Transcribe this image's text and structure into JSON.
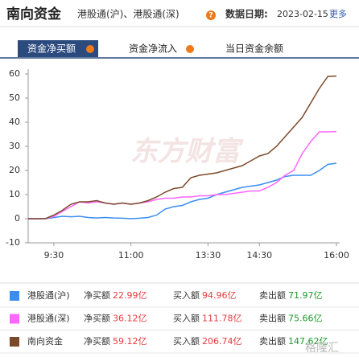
{
  "header": {
    "title": "南向资金",
    "subtitle": "港股通(沪)、港股通(深)",
    "help": "?",
    "date_label": "数据日期:",
    "date": "2023-02-15",
    "more": "更多"
  },
  "tabs": [
    "资金净买额",
    "资金净流入",
    "当日资金余额"
  ],
  "chart_data": {
    "type": "line",
    "watermark": "东方财富",
    "categories": [
      null,
      null,
      null,
      "9:30",
      null,
      null,
      null,
      null,
      null,
      null,
      null,
      null,
      "11:00",
      null,
      null,
      null,
      null,
      null,
      null,
      null,
      null,
      "13:30",
      null,
      null,
      null,
      null,
      null,
      "14:30",
      null,
      null,
      null,
      null,
      null,
      null,
      null,
      null,
      "16:00"
    ],
    "series": [
      {
        "name": "港股通(沪)",
        "color": "#3a8ef2",
        "values": [
          0,
          0,
          0,
          0.5,
          1,
          0.8,
          1,
          0.5,
          0.3,
          0.5,
          0.3,
          0.2,
          0,
          0.2,
          0.5,
          1.5,
          4,
          5,
          5.5,
          7,
          8,
          8.5,
          10,
          11,
          12,
          13,
          13.5,
          14,
          15,
          16,
          17.5,
          18,
          18,
          18,
          20,
          22.5,
          22.99
        ]
      },
      {
        "name": "港股通(深)",
        "color": "#ff66ff",
        "values": [
          0,
          0,
          0,
          1,
          3,
          5,
          7,
          6.5,
          7,
          6.5,
          6,
          6.5,
          6,
          6.5,
          7,
          8,
          8.5,
          8.5,
          9,
          9,
          9.5,
          9.5,
          10,
          10,
          10.5,
          11,
          11.5,
          11.5,
          13,
          15,
          18,
          20,
          27,
          32,
          36,
          36,
          36.12
        ]
      },
      {
        "name": "南向资金",
        "color": "#7b4a2a",
        "values": [
          0,
          0,
          0,
          1.5,
          3.5,
          6,
          7,
          7,
          7.5,
          6.5,
          6,
          6.5,
          6,
          6.5,
          7.5,
          9,
          11,
          12.5,
          13,
          17,
          18,
          18.5,
          19,
          20,
          21,
          22,
          24,
          26,
          27,
          30,
          34,
          38,
          42,
          48,
          54,
          59,
          59.12
        ]
      }
    ],
    "ylim": [
      -10,
      60
    ],
    "yticks": [
      -10,
      0,
      10,
      20,
      30,
      40,
      50,
      60
    ],
    "grid": false
  },
  "legend_table": {
    "rows": [
      [
        "净买额",
        "22.99亿",
        "买入额",
        "94.96亿",
        "卖出额",
        "71.97亿"
      ],
      [
        "净买额",
        "36.12亿",
        "买入额",
        "111.78亿",
        "卖出额",
        "75.66亿"
      ],
      [
        "净买额",
        "59.12亿",
        "买入额",
        "206.74亿",
        "卖出额",
        "147.62亿"
      ]
    ]
  },
  "corner_watermark": "格隆汇"
}
